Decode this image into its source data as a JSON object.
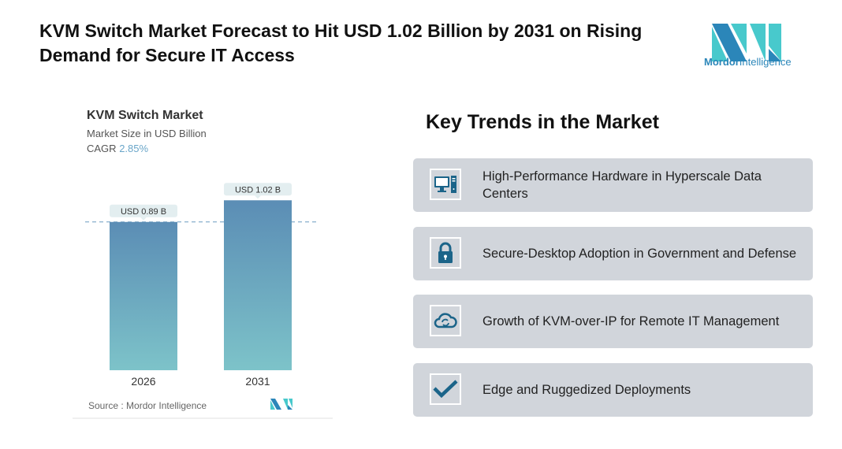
{
  "header": {
    "title": "KVM Switch Market Forecast to Hit USD 1.02 Billion by 2031 on Rising Demand for Secure IT Access"
  },
  "logo": {
    "text_bold": "Mordor",
    "text_light": "Intelligence"
  },
  "chart_data": {
    "type": "bar",
    "title": "KVM Switch Market",
    "subtitle": "Market Size in USD Billion",
    "cagr_label": "CAGR",
    "cagr_value": "2.85%",
    "categories": [
      "2026",
      "2031"
    ],
    "values": [
      0.89,
      1.02
    ],
    "data_labels": [
      "USD 0.89 B",
      "USD 1.02 B"
    ],
    "ylim": [
      0,
      1.1
    ],
    "reference_line": 0.89,
    "grid": false,
    "source": "Source :  Mordor Intelligence",
    "colors": {
      "bar_top": "#5b8db5",
      "bar_bottom": "#7dc3c9",
      "label_bg": "#e3eef0",
      "ref_line": "#6a9cc0"
    }
  },
  "trends": {
    "title": "Key Trends in the Market",
    "items": [
      {
        "icon": "desktop-computer-icon",
        "label": "High-Performance Hardware in Hyperscale Data Centers"
      },
      {
        "icon": "lock-icon",
        "label": "Secure-Desktop Adoption in Government and Defense"
      },
      {
        "icon": "cloud-sync-icon",
        "label": "Growth of KVM-over-IP for Remote IT Management"
      },
      {
        "icon": "checkmark-icon",
        "label": "Edge and Ruggedized Deployments"
      }
    ],
    "colors": {
      "card_bg": "#d1d5db",
      "icon": "#1b6489"
    }
  }
}
